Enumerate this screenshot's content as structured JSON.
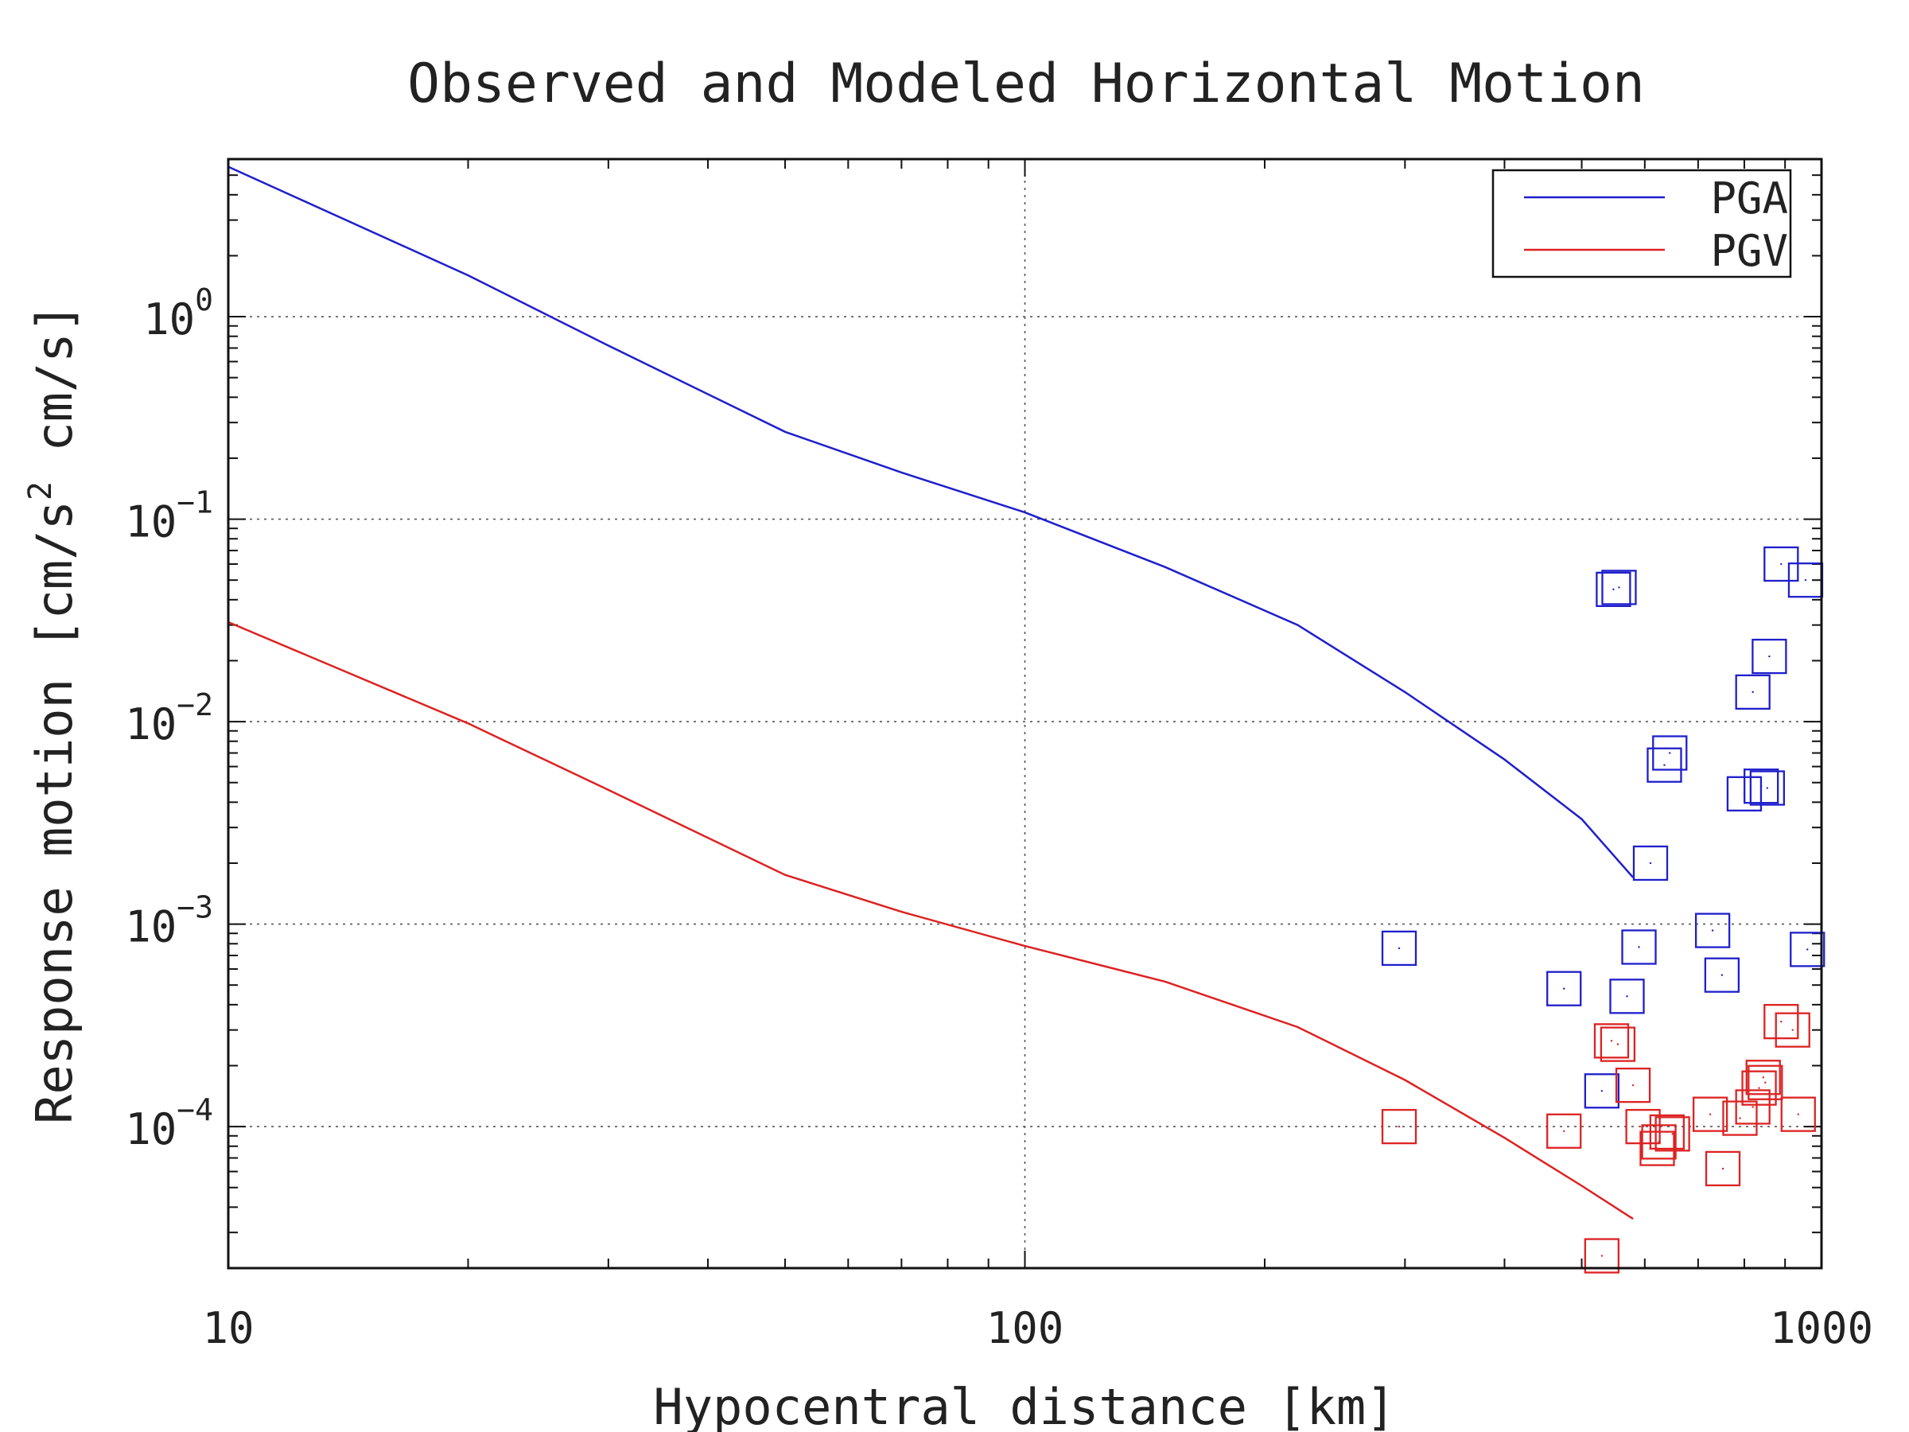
{
  "chart_data": {
    "type": "line",
    "title": "Observed and Modeled Horizontal Motion",
    "xlabel": "Hypocentral distance [km]",
    "ylabel": "Response motion [cm/s² cm/s]",
    "ylabel_parts": [
      "Response motion [cm/s",
      "2",
      " cm/s]"
    ],
    "x_scale": "log",
    "y_scale": "log",
    "xlim": [
      10,
      1000
    ],
    "ylim": [
      2e-05,
      6
    ],
    "x_ticks": [
      {
        "value": 10,
        "label": "10"
      },
      {
        "value": 100,
        "label": "100"
      },
      {
        "value": 1000,
        "label": "1000"
      }
    ],
    "y_ticks": [
      {
        "value": 1,
        "base": "10",
        "exp": "0"
      },
      {
        "value": 0.1,
        "base": "10",
        "exp": "−1"
      },
      {
        "value": 0.01,
        "base": "10",
        "exp": "−2"
      },
      {
        "value": 0.001,
        "base": "10",
        "exp": "−3"
      },
      {
        "value": 0.0001,
        "base": "10",
        "exp": "−4"
      }
    ],
    "grid": "dotted at major ticks",
    "legend": {
      "position": "top-right",
      "entries": [
        "PGA",
        "PGV"
      ]
    },
    "series": [
      {
        "name": "PGA",
        "kind": "model-line",
        "color": "#1f1fcc",
        "x": [
          10,
          20,
          30,
          50,
          70,
          100,
          150,
          220,
          300,
          400,
          500,
          580
        ],
        "y": [
          5.5,
          1.6,
          0.72,
          0.27,
          0.17,
          0.108,
          0.058,
          0.03,
          0.014,
          0.0065,
          0.0033,
          0.0017
        ]
      },
      {
        "name": "PGV",
        "kind": "model-line",
        "color": "#dd2222",
        "x": [
          10,
          20,
          30,
          50,
          70,
          100,
          150,
          220,
          300,
          400,
          500,
          580
        ],
        "y": [
          0.031,
          0.0098,
          0.0046,
          0.00175,
          0.00115,
          0.00078,
          0.00052,
          0.00031,
          0.00017,
          8.8e-05,
          5.1e-05,
          3.5e-05
        ]
      },
      {
        "name": "PGA",
        "kind": "observed",
        "color": "#1f1fcc",
        "points": [
          [
            295,
            0.00076
          ],
          [
            475,
            0.00048
          ],
          [
            530,
            0.00015
          ],
          [
            548,
            0.045
          ],
          [
            557,
            0.046
          ],
          [
            570,
            0.00044
          ],
          [
            590,
            0.00077
          ],
          [
            610,
            0.002
          ],
          [
            635,
            0.0061
          ],
          [
            645,
            0.007
          ],
          [
            730,
            0.00093
          ],
          [
            750,
            0.00056
          ],
          [
            800,
            0.0044
          ],
          [
            820,
            0.014
          ],
          [
            840,
            0.0048
          ],
          [
            855,
            0.0047
          ],
          [
            860,
            0.021
          ],
          [
            890,
            0.06
          ],
          [
            955,
            0.05
          ],
          [
            960,
            0.00075
          ]
        ]
      },
      {
        "name": "PGV",
        "kind": "observed",
        "color": "#dd2222",
        "points": [
          [
            295,
            0.0001
          ],
          [
            475,
            9.5e-05
          ],
          [
            530,
            2.3e-05
          ],
          [
            545,
            0.000265
          ],
          [
            555,
            0.000255
          ],
          [
            580,
            0.00016
          ],
          [
            597,
            0.0001
          ],
          [
            622,
            7.8e-05
          ],
          [
            625,
            8.4e-05
          ],
          [
            640,
            9.4e-05
          ],
          [
            650,
            9.2e-05
          ],
          [
            725,
            0.000115
          ],
          [
            752,
            6.2e-05
          ],
          [
            790,
            0.00011
          ],
          [
            820,
            0.000125
          ],
          [
            835,
            0.000155
          ],
          [
            845,
            0.000175
          ],
          [
            850,
            0.000165
          ],
          [
            890,
            0.00033
          ],
          [
            920,
            0.0003
          ],
          [
            935,
            0.000115
          ]
        ]
      }
    ]
  }
}
